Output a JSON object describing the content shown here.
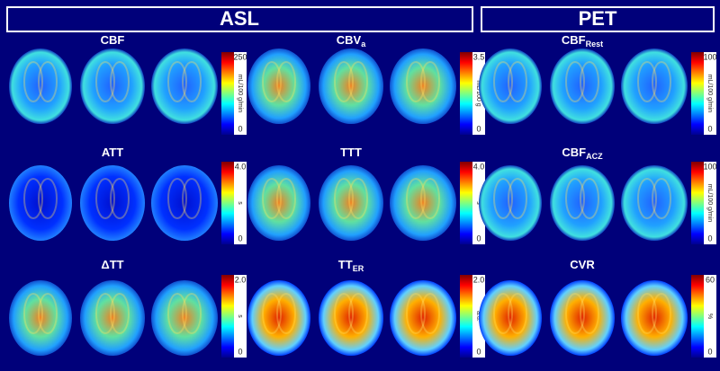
{
  "header": {
    "asl": "ASL",
    "pet": "PET"
  },
  "panels": [
    {
      "title": {
        "main": "CBF"
      },
      "colorbar": {
        "max": "250",
        "min": "0",
        "unit": "mL/100 g/min"
      }
    },
    {
      "title": {
        "main": "CBV",
        "sub": "a"
      },
      "colorbar": {
        "max": "3.5",
        "min": "0",
        "unit": "mL/100 g"
      }
    },
    {
      "title": {
        "main": "CBF",
        "sub": "Rest"
      },
      "colorbar": {
        "max": "100",
        "min": "0",
        "unit": "mL/100 g/min"
      }
    },
    {
      "title": {
        "main": "ATT"
      },
      "colorbar": {
        "max": "4.0",
        "min": "0",
        "unit": "s"
      }
    },
    {
      "title": {
        "main": "TTT"
      },
      "colorbar": {
        "max": "4.0",
        "min": "0",
        "unit": "s"
      }
    },
    {
      "title": {
        "main": "CBF",
        "sub": "ACZ"
      },
      "colorbar": {
        "max": "100",
        "min": "0",
        "unit": "mL/100 g/min"
      }
    },
    {
      "title": {
        "main": "ΔTT"
      },
      "colorbar": {
        "max": "2.0",
        "min": "0",
        "unit": "s"
      }
    },
    {
      "title": {
        "main": "TT",
        "sub": "ER"
      },
      "colorbar": {
        "max": "2.0",
        "min": "0",
        "unit": "a.u."
      }
    },
    {
      "title": {
        "main": "CVR"
      },
      "colorbar": {
        "max": "60",
        "min": "0",
        "unit": "%"
      }
    }
  ]
}
